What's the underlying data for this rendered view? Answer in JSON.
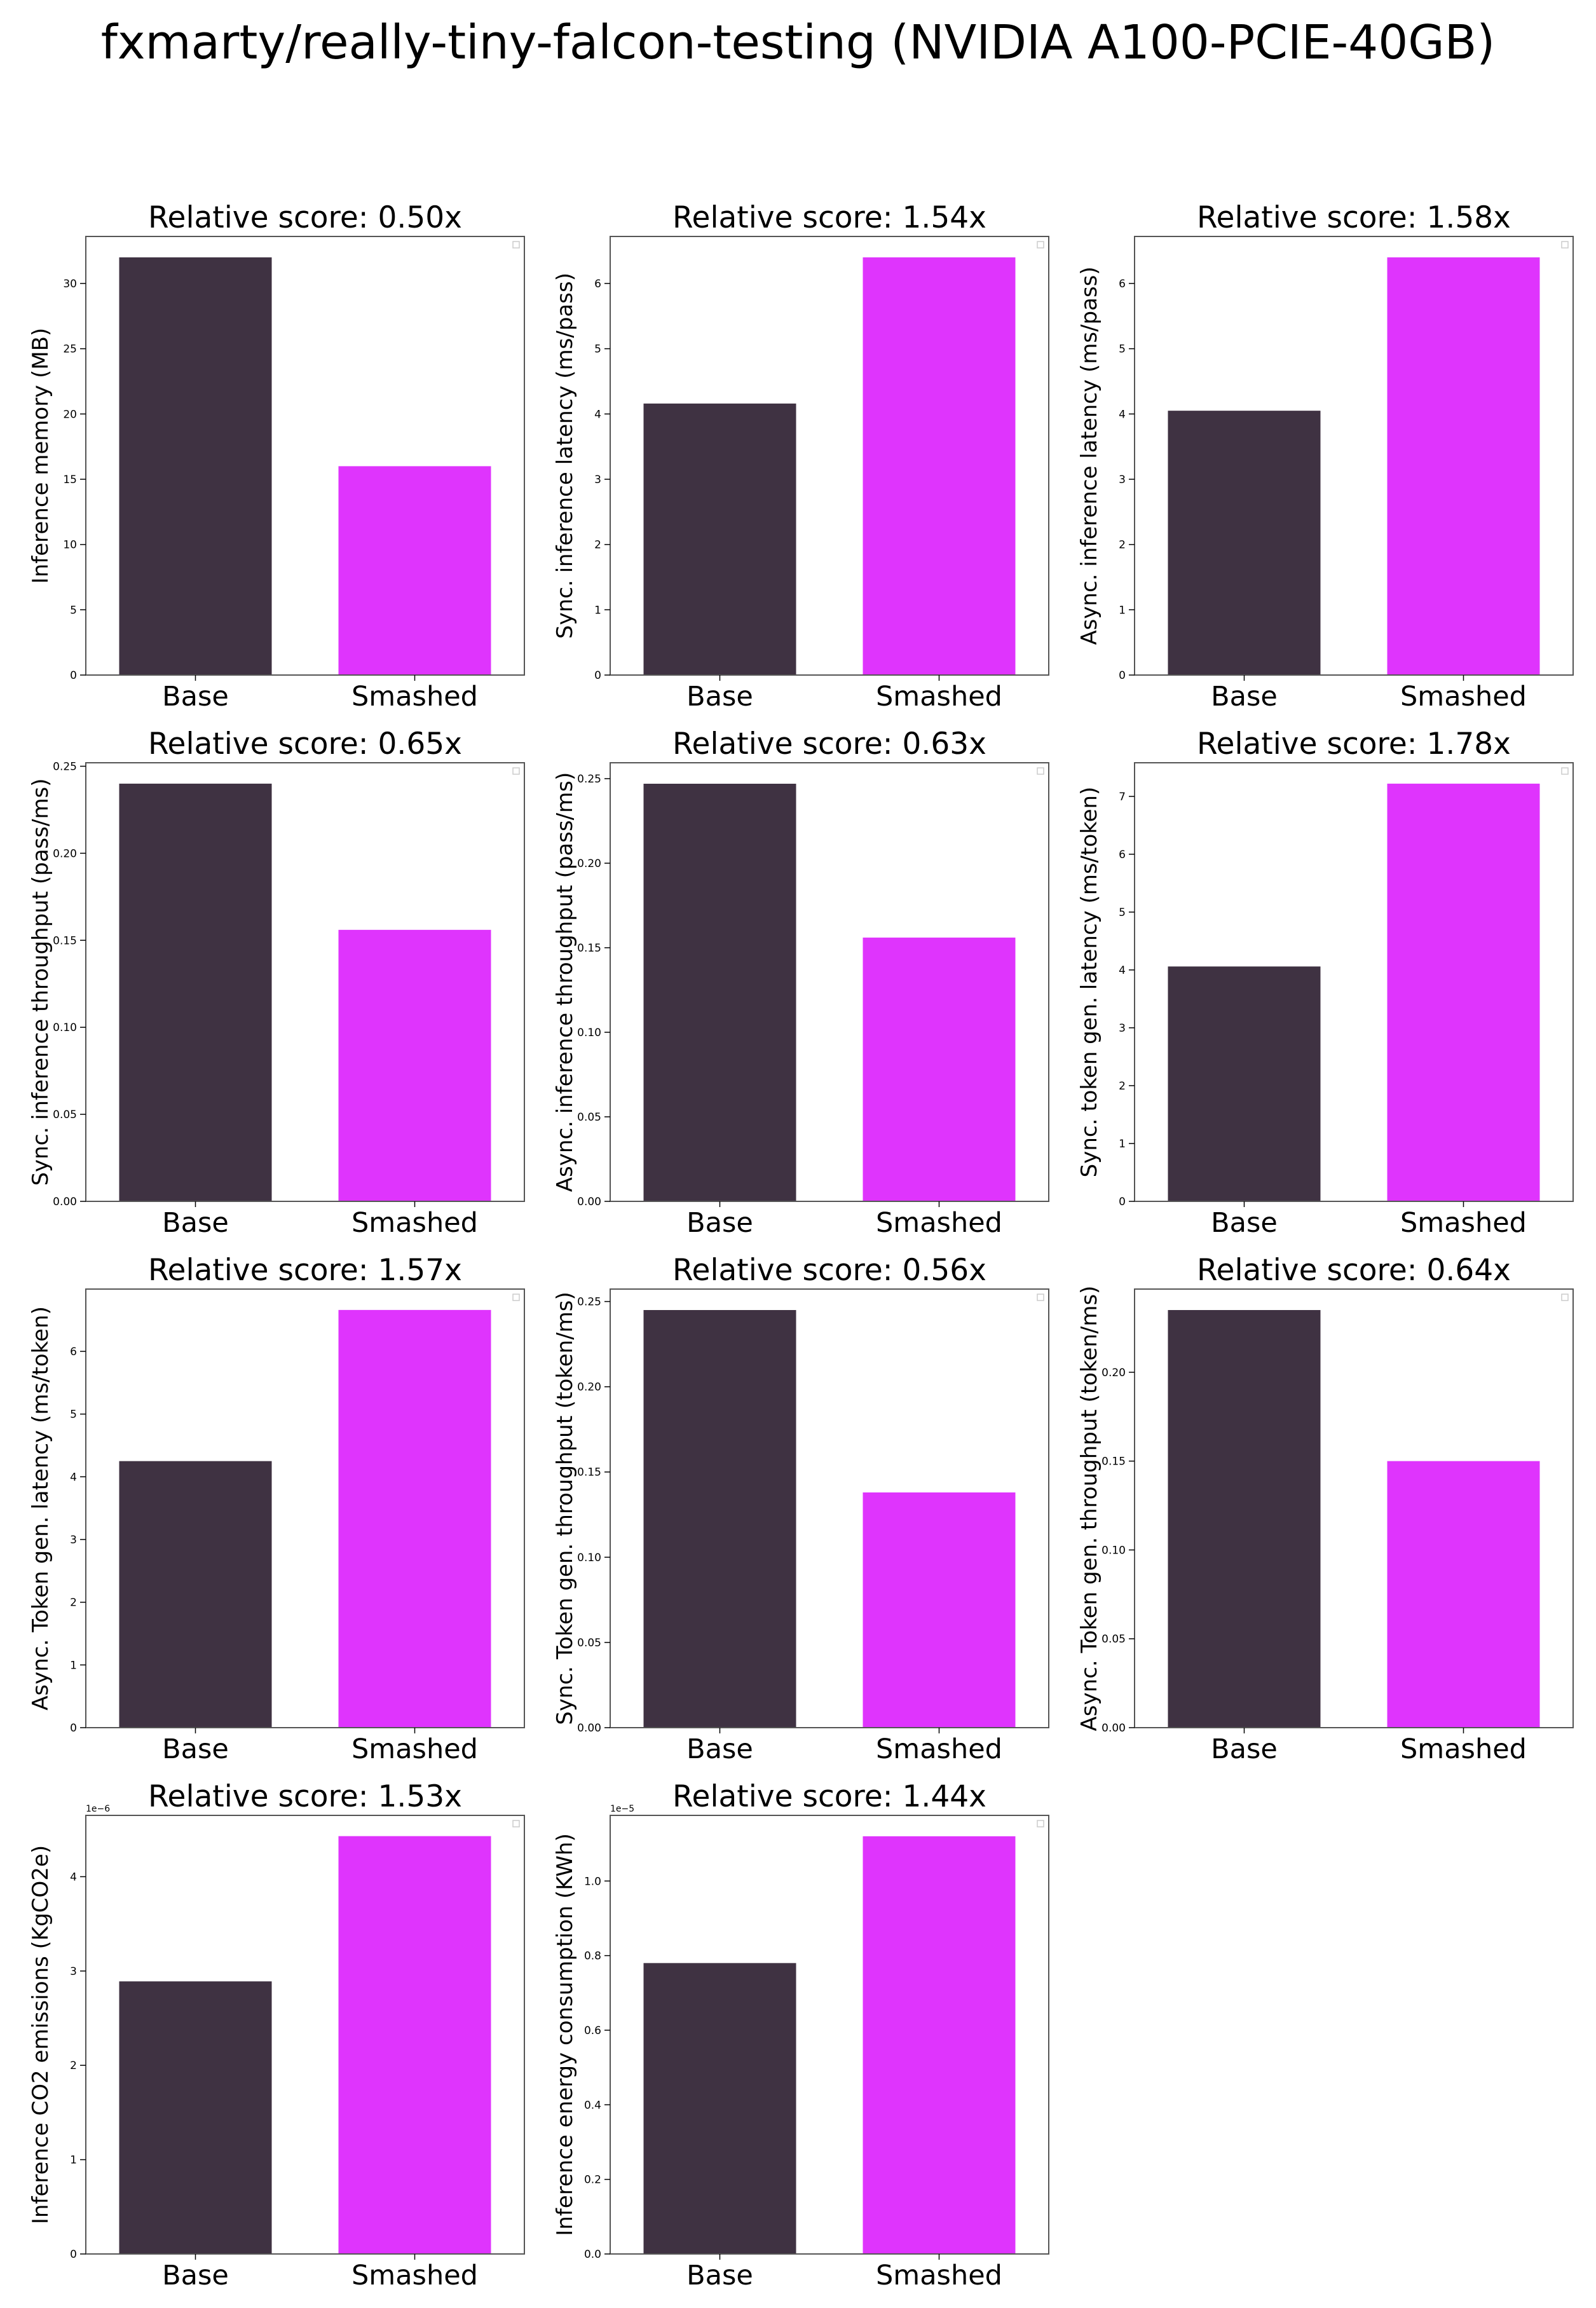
{
  "title": "fxmarty/really-tiny-falcon-testing (NVIDIA A100-PCIE-40GB)",
  "colors": {
    "base": "#3f3242",
    "smashed": "#df34fd",
    "frame": "#555555"
  },
  "chart_data": [
    {
      "type": "bar",
      "title": "Relative score: 0.50x",
      "ylabel": "Inference memory (MB)",
      "categories": [
        "Base",
        "Smashed"
      ],
      "values": [
        32.0,
        16.0
      ],
      "ylim": [
        0,
        33.6
      ],
      "yticks": [
        0,
        5,
        10,
        15,
        20,
        25,
        30
      ],
      "ytick_labels": [
        "0",
        "5",
        "10",
        "15",
        "20",
        "25",
        "30"
      ],
      "exponent": ""
    },
    {
      "type": "bar",
      "title": "Relative score: 1.54x",
      "ylabel": "Sync. inference latency (ms/pass)",
      "categories": [
        "Base",
        "Smashed"
      ],
      "values": [
        4.16,
        6.4
      ],
      "ylim": [
        0,
        6.72
      ],
      "yticks": [
        0,
        1,
        2,
        3,
        4,
        5,
        6
      ],
      "ytick_labels": [
        "0",
        "1",
        "2",
        "3",
        "4",
        "5",
        "6"
      ],
      "exponent": ""
    },
    {
      "type": "bar",
      "title": "Relative score: 1.58x",
      "ylabel": "Async. inference latency (ms/pass)",
      "categories": [
        "Base",
        "Smashed"
      ],
      "values": [
        4.05,
        6.4
      ],
      "ylim": [
        0,
        6.72
      ],
      "yticks": [
        0,
        1,
        2,
        3,
        4,
        5,
        6
      ],
      "ytick_labels": [
        "0",
        "1",
        "2",
        "3",
        "4",
        "5",
        "6"
      ],
      "exponent": ""
    },
    {
      "type": "bar",
      "title": "Relative score: 0.65x",
      "ylabel": "Sync. inference throughput (pass/ms)",
      "categories": [
        "Base",
        "Smashed"
      ],
      "values": [
        0.24,
        0.156
      ],
      "ylim": [
        0,
        0.252
      ],
      "yticks": [
        0,
        0.05,
        0.1,
        0.15,
        0.2,
        0.25
      ],
      "ytick_labels": [
        "0.00",
        "0.05",
        "0.10",
        "0.15",
        "0.20",
        "0.25"
      ],
      "exponent": ""
    },
    {
      "type": "bar",
      "title": "Relative score: 0.63x",
      "ylabel": "Async. inference throughput (pass/ms)",
      "categories": [
        "Base",
        "Smashed"
      ],
      "values": [
        0.247,
        0.156
      ],
      "ylim": [
        0,
        0.2594
      ],
      "yticks": [
        0,
        0.05,
        0.1,
        0.15,
        0.2,
        0.25
      ],
      "ytick_labels": [
        "0.00",
        "0.05",
        "0.10",
        "0.15",
        "0.20",
        "0.25"
      ],
      "exponent": ""
    },
    {
      "type": "bar",
      "title": "Relative score: 1.78x",
      "ylabel": "Sync. token gen. latency (ms/token)",
      "categories": [
        "Base",
        "Smashed"
      ],
      "values": [
        4.06,
        7.22
      ],
      "ylim": [
        0,
        7.581
      ],
      "yticks": [
        0,
        1,
        2,
        3,
        4,
        5,
        6,
        7
      ],
      "ytick_labels": [
        "0",
        "1",
        "2",
        "3",
        "4",
        "5",
        "6",
        "7"
      ],
      "exponent": ""
    },
    {
      "type": "bar",
      "title": "Relative score: 1.57x",
      "ylabel": "Async. Token gen. latency (ms/token)",
      "categories": [
        "Base",
        "Smashed"
      ],
      "values": [
        4.25,
        6.66
      ],
      "ylim": [
        0,
        6.993
      ],
      "yticks": [
        0,
        1,
        2,
        3,
        4,
        5,
        6
      ],
      "ytick_labels": [
        "0",
        "1",
        "2",
        "3",
        "4",
        "5",
        "6"
      ],
      "exponent": ""
    },
    {
      "type": "bar",
      "title": "Relative score: 0.56x",
      "ylabel": "Sync. Token gen. throughput (token/ms)",
      "categories": [
        "Base",
        "Smashed"
      ],
      "values": [
        0.245,
        0.138
      ],
      "ylim": [
        0,
        0.2573
      ],
      "yticks": [
        0,
        0.05,
        0.1,
        0.15,
        0.2,
        0.25
      ],
      "ytick_labels": [
        "0.00",
        "0.05",
        "0.10",
        "0.15",
        "0.20",
        "0.25"
      ],
      "exponent": ""
    },
    {
      "type": "bar",
      "title": "Relative score: 0.64x",
      "ylabel": "Async. Token gen. throughput (token/ms)",
      "categories": [
        "Base",
        "Smashed"
      ],
      "values": [
        0.235,
        0.15
      ],
      "ylim": [
        0,
        0.2468
      ],
      "yticks": [
        0,
        0.05,
        0.1,
        0.15,
        0.2
      ],
      "ytick_labels": [
        "0.00",
        "0.05",
        "0.10",
        "0.15",
        "0.20"
      ],
      "exponent": ""
    },
    {
      "type": "bar",
      "title": "Relative score: 1.53x",
      "ylabel": "Inference CO2 emissions (KgCO2e)",
      "categories": [
        "Base",
        "Smashed"
      ],
      "values": [
        2.89e-06,
        4.43e-06
      ],
      "ylim": [
        0,
        4.65e-06
      ],
      "yticks": [
        0,
        1e-06,
        2e-06,
        3e-06,
        4e-06
      ],
      "ytick_labels": [
        "0",
        "1",
        "2",
        "3",
        "4"
      ],
      "exponent": "1e−6"
    },
    {
      "type": "bar",
      "title": "Relative score: 1.44x",
      "ylabel": "Inference energy consumption (KWh)",
      "categories": [
        "Base",
        "Smashed"
      ],
      "values": [
        7.8e-06,
        1.12e-05
      ],
      "ylim": [
        0,
        1.176e-05
      ],
      "yticks": [
        0,
        2e-06,
        4e-06,
        6e-06,
        8e-06,
        1e-05
      ],
      "ytick_labels": [
        "0.0",
        "0.2",
        "0.4",
        "0.6",
        "0.8",
        "1.0"
      ],
      "exponent": "1e−5"
    }
  ]
}
